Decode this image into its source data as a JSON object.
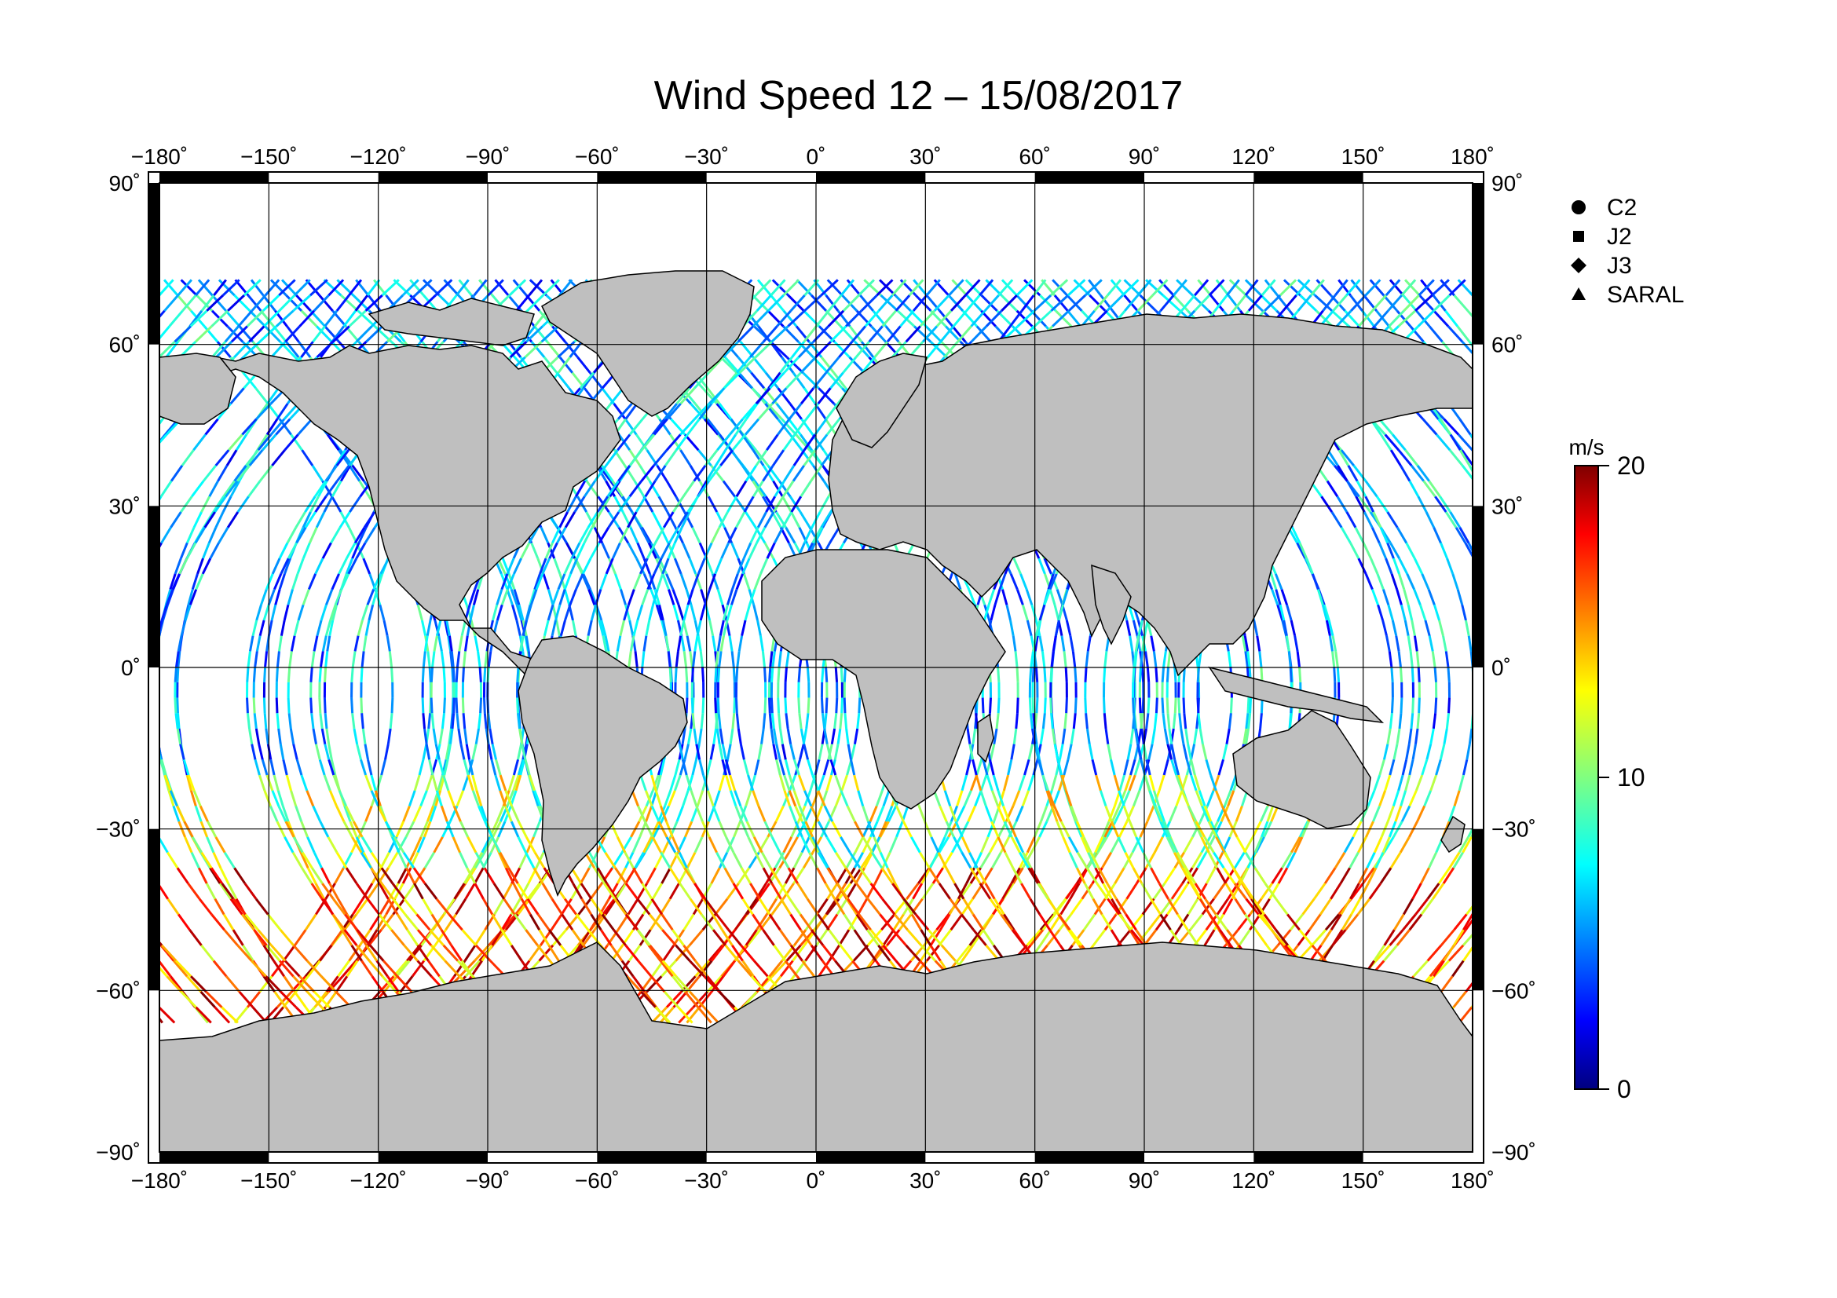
{
  "title": "Wind Speed 12 – 15/08/2017",
  "chart_data": {
    "type": "scatter",
    "projection": "equirectangular",
    "x_ticks": [
      -180,
      -150,
      -120,
      -90,
      -60,
      -30,
      0,
      30,
      60,
      90,
      120,
      150,
      180
    ],
    "y_ticks": [
      90,
      60,
      30,
      0,
      -30,
      -60,
      -90
    ],
    "x_tick_labels": [
      "−180˚",
      "−150˚",
      "−120˚",
      "−90˚",
      "−60˚",
      "−30˚",
      "0˚",
      "30˚",
      "60˚",
      "90˚",
      "120˚",
      "150˚",
      "180˚"
    ],
    "y_tick_labels": [
      "90˚",
      "60˚",
      "30˚",
      "0˚",
      "−30˚",
      "−60˚",
      "−90˚"
    ],
    "xlim": [
      -180,
      180
    ],
    "ylim": [
      -90,
      90
    ],
    "grid": true,
    "legend_position": "top-right",
    "legend": [
      {
        "symbol": "circle",
        "label": "C2"
      },
      {
        "symbol": "square",
        "label": "J2"
      },
      {
        "symbol": "diamond",
        "label": "J3"
      },
      {
        "symbol": "triangle",
        "label": "SARAL"
      }
    ],
    "colorbar": {
      "unit_label": "m/s",
      "min": 0,
      "max": 20,
      "tick_values": [
        0,
        10,
        20
      ],
      "tick_labels": [
        "0",
        "10",
        "20"
      ],
      "colormap": "jet",
      "colors": [
        "#00007f",
        "#0000ff",
        "#0080ff",
        "#00ffff",
        "#80ff80",
        "#ffff00",
        "#ff8000",
        "#ff0000",
        "#7f0000"
      ]
    },
    "land_color": "#bfbfbf",
    "ocean_color": "#ffffff",
    "track_lat_range": [
      -66,
      72
    ],
    "tracks_note_visible": false
  }
}
